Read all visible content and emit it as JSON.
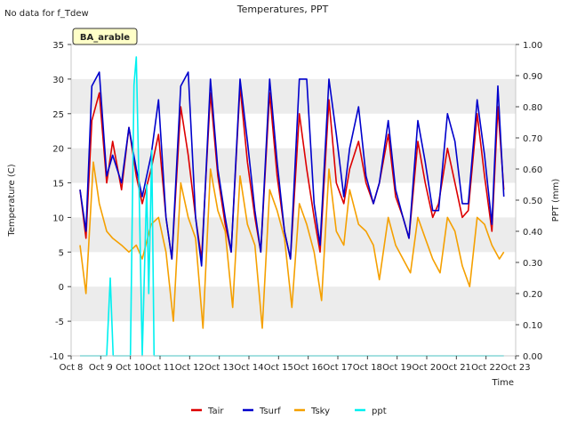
{
  "page_title": "Temperatures, PPT",
  "no_data_note": "No data for f_Tdew",
  "badge_label": "BA_arable",
  "chart_data": {
    "type": "line",
    "title": "Temperatures, PPT",
    "xlabel": "Time",
    "ylabel": "Temperature (C)",
    "y2label": "PPT (mm)",
    "ylim": [
      -10,
      35
    ],
    "y2lim": [
      0.0,
      1.0
    ],
    "xlim": [
      8,
      23
    ],
    "x_ticks": [
      8,
      9,
      10,
      11,
      12,
      13,
      14,
      15,
      16,
      17,
      18,
      19,
      20,
      21,
      22,
      23
    ],
    "x_tick_labels": [
      "Oct 8",
      "Oct 9",
      "Oct 10",
      "Oct 11",
      "Oct 12",
      "Oct 13",
      "Oct 14",
      "Oct 15",
      "Oct 16",
      "Oct 17",
      "Oct 18",
      "Oct 19",
      "Oct 20",
      "Oct 21",
      "Oct 22",
      "Oct 23"
    ],
    "y_ticks": [
      -10,
      -5,
      0,
      5,
      10,
      15,
      20,
      25,
      30,
      35
    ],
    "y2_ticks": [
      "0.00",
      "0.10",
      "0.20",
      "0.30",
      "0.40",
      "0.50",
      "0.60",
      "0.70",
      "0.80",
      "0.90",
      "1.00"
    ],
    "grid": "horizontal bands",
    "legend_position": "bottom-center",
    "series": [
      {
        "name": "Tair",
        "color": "#dd0000",
        "axis": "left",
        "x": [
          8.3,
          8.5,
          8.7,
          8.95,
          9.2,
          9.4,
          9.7,
          9.95,
          10.2,
          10.4,
          10.7,
          10.95,
          11.2,
          11.4,
          11.7,
          11.95,
          12.2,
          12.4,
          12.7,
          12.95,
          13.2,
          13.4,
          13.7,
          13.95,
          14.2,
          14.4,
          14.7,
          14.95,
          15.2,
          15.4,
          15.7,
          15.95,
          16.2,
          16.4,
          16.7,
          16.95,
          17.2,
          17.4,
          17.7,
          17.95,
          18.2,
          18.4,
          18.7,
          18.95,
          19.2,
          19.4,
          19.7,
          19.95,
          20.2,
          20.4,
          20.7,
          20.95,
          21.2,
          21.4,
          21.7,
          21.95,
          22.2,
          22.4,
          22.6
        ],
        "y": [
          14,
          7,
          24,
          28,
          15,
          21,
          14,
          23,
          16,
          12,
          17,
          22,
          10,
          4,
          26,
          19,
          10,
          4,
          28,
          16,
          9,
          5,
          29,
          18,
          10,
          5,
          28,
          16,
          8,
          4,
          25,
          17,
          10,
          5,
          27,
          15,
          12,
          17,
          21,
          15,
          12,
          15,
          22,
          13,
          10,
          7,
          21,
          15,
          10,
          12,
          20,
          15,
          10,
          11,
          25,
          16,
          8,
          26,
          14
        ]
      },
      {
        "name": "Tsurf",
        "color": "#0000cc",
        "axis": "left",
        "x": [
          8.3,
          8.5,
          8.7,
          8.95,
          9.2,
          9.4,
          9.7,
          9.95,
          10.2,
          10.4,
          10.7,
          10.95,
          11.2,
          11.4,
          11.7,
          11.95,
          12.2,
          12.4,
          12.7,
          12.95,
          13.2,
          13.4,
          13.7,
          13.95,
          14.2,
          14.4,
          14.7,
          14.95,
          15.2,
          15.4,
          15.7,
          15.95,
          16.2,
          16.4,
          16.7,
          16.95,
          17.2,
          17.4,
          17.7,
          17.95,
          18.2,
          18.4,
          18.7,
          18.95,
          19.2,
          19.4,
          19.7,
          19.95,
          20.2,
          20.4,
          20.7,
          20.95,
          21.2,
          21.4,
          21.7,
          21.95,
          22.2,
          22.4,
          22.6
        ],
        "y": [
          14,
          8,
          29,
          31,
          16,
          19,
          15,
          23,
          17,
          13,
          19,
          27,
          10,
          4,
          29,
          31,
          10,
          3,
          30,
          17,
          10,
          5,
          30,
          21,
          11,
          5,
          30,
          18,
          8,
          4,
          30,
          30,
          12,
          6,
          30,
          22,
          13,
          20,
          26,
          16,
          12,
          15,
          24,
          14,
          10,
          7,
          24,
          18,
          11,
          11,
          25,
          21,
          12,
          12,
          27,
          19,
          9,
          29,
          13
        ]
      },
      {
        "name": "Tsky",
        "color": "#f5a000",
        "axis": "left",
        "x": [
          8.3,
          8.5,
          8.75,
          8.95,
          9.2,
          9.4,
          9.7,
          9.95,
          10.2,
          10.4,
          10.7,
          10.95,
          11.2,
          11.45,
          11.7,
          11.95,
          12.2,
          12.45,
          12.7,
          12.95,
          13.2,
          13.45,
          13.7,
          13.95,
          14.2,
          14.45,
          14.7,
          14.95,
          15.2,
          15.45,
          15.7,
          15.95,
          16.2,
          16.45,
          16.7,
          16.95,
          17.2,
          17.4,
          17.7,
          17.95,
          18.2,
          18.4,
          18.7,
          18.95,
          19.2,
          19.45,
          19.7,
          19.95,
          20.2,
          20.45,
          20.7,
          20.95,
          21.2,
          21.45,
          21.7,
          21.95,
          22.2,
          22.45,
          22.6
        ],
        "y": [
          6,
          -1,
          18,
          12,
          8,
          7,
          6,
          5,
          6,
          4,
          9,
          10,
          5,
          -5,
          15,
          10,
          7,
          -6,
          17,
          11,
          8,
          -3,
          16,
          9,
          6,
          -6,
          14,
          11,
          7,
          -3,
          12,
          9,
          5,
          -2,
          17,
          8,
          6,
          14,
          9,
          8,
          6,
          1,
          10,
          6,
          4,
          2,
          10,
          7,
          4,
          2,
          10,
          8,
          3,
          0,
          10,
          9,
          6,
          4,
          5
        ]
      },
      {
        "name": "ppt",
        "color": "#00f0f0",
        "axis": "right",
        "x": [
          8.3,
          9.2,
          9.32,
          9.42,
          9.55,
          10.0,
          10.12,
          10.2,
          10.3,
          10.4,
          10.55,
          10.62,
          10.72,
          10.8,
          10.9,
          22.6
        ],
        "y": [
          0,
          0,
          0.25,
          0,
          0,
          0,
          0.87,
          0.96,
          0.5,
          0,
          0.55,
          0.2,
          0.66,
          0,
          0,
          0
        ]
      }
    ]
  }
}
